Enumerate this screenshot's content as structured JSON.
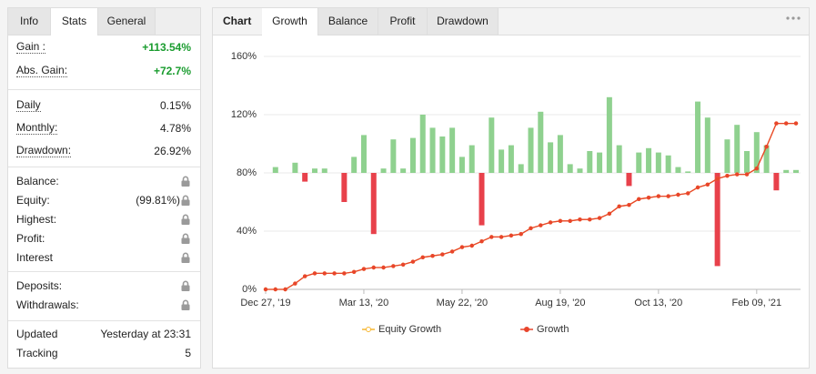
{
  "left_panel": {
    "tabs": [
      "Info",
      "Stats",
      "General"
    ],
    "active_tab": 1,
    "sections": [
      [
        {
          "label": "Gain :",
          "value": "+113.54%",
          "color": "#1a9c2f",
          "dotted": true
        },
        {
          "label": "Abs. Gain:",
          "value": "+72.7%",
          "color": "#1a9c2f",
          "dotted": true
        }
      ],
      [
        {
          "label": "Daily",
          "value": "0.15%",
          "dotted": true
        },
        {
          "label": "Monthly:",
          "value": "4.78%",
          "dotted": true
        },
        {
          "label": "Drawdown:",
          "value": "26.92%",
          "dotted": true
        }
      ],
      [
        {
          "label": "Balance:",
          "locked": true
        },
        {
          "label": "Equity:",
          "value": "(99.81%)",
          "locked": true
        },
        {
          "label": "Highest:",
          "locked": true
        },
        {
          "label": "Profit:",
          "locked": true
        },
        {
          "label": "Interest",
          "locked": true
        }
      ],
      [
        {
          "label": "Deposits:",
          "locked": true
        },
        {
          "label": "Withdrawals:",
          "locked": true
        }
      ],
      [
        {
          "label": "Updated",
          "value": "Yesterday at 23:31"
        },
        {
          "label": "Tracking",
          "value": "5"
        }
      ]
    ]
  },
  "right_panel": {
    "header": "Chart",
    "tabs": [
      "Growth",
      "Balance",
      "Profit",
      "Drawdown"
    ],
    "active_tab": 0,
    "chart_data": {
      "type": "line",
      "ylim": [
        0,
        160
      ],
      "yticks": [
        {
          "value": 0,
          "label": "0%"
        },
        {
          "value": 40,
          "label": "40%"
        },
        {
          "value": 80,
          "label": "80%"
        },
        {
          "value": 120,
          "label": "120%"
        },
        {
          "value": 160,
          "label": "160%"
        }
      ],
      "xticks": [
        {
          "value": 0,
          "label": "Dec 27, '19"
        },
        {
          "value": 10,
          "label": "Mar 13, '20"
        },
        {
          "value": 20,
          "label": "May 22, '20"
        },
        {
          "value": 30,
          "label": "Aug 19, '20"
        },
        {
          "value": 40,
          "label": "Oct 13, '20"
        },
        {
          "value": 50,
          "label": "Feb 09, '21"
        }
      ],
      "grid": true,
      "bars": {
        "base": 80,
        "up_color": "#8fd18f",
        "down_color": "#e8414b",
        "values": [
          80,
          84,
          80,
          87,
          74,
          83,
          83,
          80,
          60,
          91,
          106,
          38,
          83,
          103,
          83,
          104,
          120,
          111,
          105,
          111,
          91,
          99,
          44,
          118,
          96,
          99,
          86,
          111,
          122,
          101,
          106,
          86,
          83,
          95,
          94,
          132,
          99,
          71,
          94,
          97,
          94,
          92,
          84,
          81,
          129,
          118,
          16,
          103,
          113,
          95,
          108,
          99,
          68,
          82,
          82
        ]
      },
      "series": [
        {
          "name": "Equity Growth",
          "color": "#f7b731",
          "values": [
            0,
            0,
            0,
            4,
            9,
            11,
            11,
            11,
            11,
            12,
            14,
            15,
            15,
            16,
            17,
            19,
            22,
            23,
            24,
            26,
            29,
            30,
            33,
            36,
            36,
            37,
            38,
            42,
            44,
            46,
            47,
            47,
            48,
            48,
            49,
            52,
            57,
            58,
            62,
            63,
            64,
            64,
            65,
            66,
            70,
            72,
            76,
            78,
            79,
            79,
            83,
            98,
            114,
            114,
            114
          ]
        },
        {
          "name": "Growth",
          "color": "#e8452c",
          "values": [
            0,
            0,
            0,
            4,
            9,
            11,
            11,
            11,
            11,
            12,
            14,
            15,
            15,
            16,
            17,
            19,
            22,
            23,
            24,
            26,
            29,
            30,
            33,
            36,
            36,
            37,
            38,
            42,
            44,
            46,
            47,
            47,
            48,
            48,
            49,
            52,
            57,
            58,
            62,
            63,
            64,
            64,
            65,
            66,
            70,
            72,
            76,
            78,
            79,
            79,
            83,
            98,
            114,
            114,
            114
          ]
        }
      ]
    }
  }
}
